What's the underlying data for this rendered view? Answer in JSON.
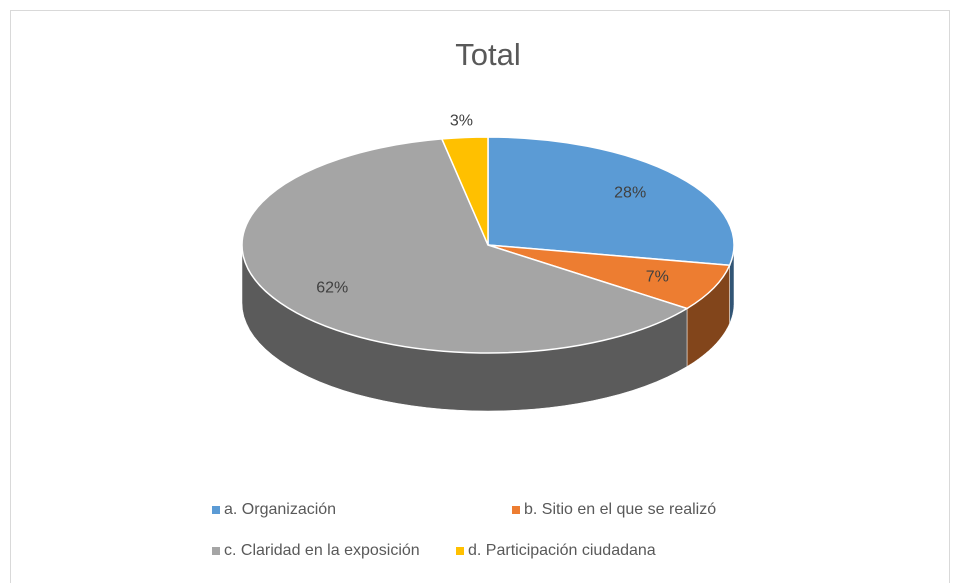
{
  "chart_data": {
    "type": "pie3d",
    "title": "Total",
    "categories": [
      "a. Organización",
      "b. Sitio en el que se realizó",
      "c. Claridad en la exposición",
      "d. Participación ciudadana"
    ],
    "values": [
      28,
      7,
      62,
      3
    ],
    "value_labels": [
      "28%",
      "7%",
      "62%",
      "3%"
    ],
    "colors": [
      "#5b9bd5",
      "#ed7d31",
      "#a5a5a5",
      "#ffc000"
    ],
    "legend": "bottom"
  }
}
